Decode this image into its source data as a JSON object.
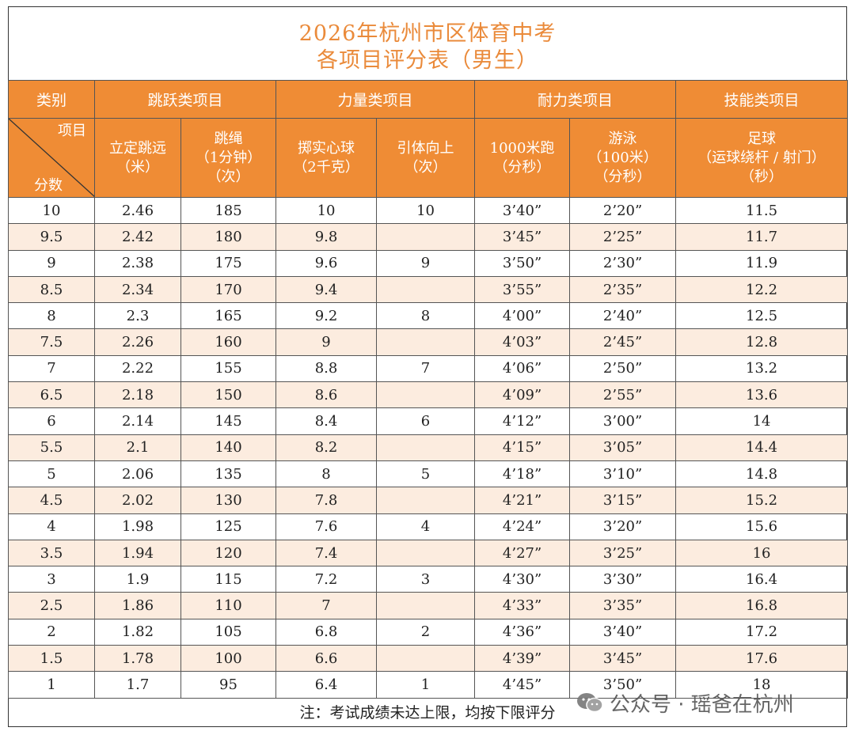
{
  "title_line1": "2026年杭州市区体育中考",
  "title_line2": "各项目评分表（男生）",
  "category_header": "类别",
  "diag_top": "项目",
  "diag_bottom": "分数",
  "groups": [
    {
      "label": "跳跃类项目"
    },
    {
      "label": "力量类项目"
    },
    {
      "label": "耐力类项目"
    },
    {
      "label": "技能类项目"
    }
  ],
  "items": [
    {
      "line1": "立定跳远",
      "line2": "（米）",
      "line3": ""
    },
    {
      "line1": "跳绳",
      "line2": "（1分钟）",
      "line3": "（次）"
    },
    {
      "line1": "掷实心球",
      "line2": "（2千克）",
      "line3": ""
    },
    {
      "line1": "引体向上",
      "line2": "（次）",
      "line3": ""
    },
    {
      "line1": "1000米跑",
      "line2": "（分秒）",
      "line3": ""
    },
    {
      "line1": "游泳",
      "line2": "（100米）",
      "line3": "（分秒）"
    },
    {
      "line1": "足球",
      "line2": "（运球绕杆 / 射门）",
      "line3": "（秒）"
    }
  ],
  "rows": [
    [
      "10",
      "2.46",
      "185",
      "10",
      "10",
      "3’40”",
      "2’20”",
      "11.5"
    ],
    [
      "9.5",
      "2.42",
      "180",
      "9.8",
      "",
      "3’45”",
      "2’25”",
      "11.7"
    ],
    [
      "9",
      "2.38",
      "175",
      "9.6",
      "9",
      "3’50”",
      "2’30”",
      "11.9"
    ],
    [
      "8.5",
      "2.34",
      "170",
      "9.4",
      "",
      "3’55”",
      "2’35”",
      "12.2"
    ],
    [
      "8",
      "2.3",
      "165",
      "9.2",
      "8",
      "4’00”",
      "2’40”",
      "12.5"
    ],
    [
      "7.5",
      "2.26",
      "160",
      "9",
      "",
      "4’03”",
      "2’45”",
      "12.8"
    ],
    [
      "7",
      "2.22",
      "155",
      "8.8",
      "7",
      "4’06”",
      "2’50”",
      "13.2"
    ],
    [
      "6.5",
      "2.18",
      "150",
      "8.6",
      "",
      "4’09”",
      "2’55”",
      "13.6"
    ],
    [
      "6",
      "2.14",
      "145",
      "8.4",
      "6",
      "4’12”",
      "3’00”",
      "14"
    ],
    [
      "5.5",
      "2.1",
      "140",
      "8.2",
      "",
      "4’15”",
      "3’05”",
      "14.4"
    ],
    [
      "5",
      "2.06",
      "135",
      "8",
      "5",
      "4’18”",
      "3’10”",
      "14.8"
    ],
    [
      "4.5",
      "2.02",
      "130",
      "7.8",
      "",
      "4’21”",
      "3’15”",
      "15.2"
    ],
    [
      "4",
      "1.98",
      "125",
      "7.6",
      "4",
      "4’24”",
      "3’20”",
      "15.6"
    ],
    [
      "3.5",
      "1.94",
      "120",
      "7.4",
      "",
      "4’27”",
      "3’25”",
      "16"
    ],
    [
      "3",
      "1.9",
      "115",
      "7.2",
      "3",
      "4’30”",
      "3’30”",
      "16.4"
    ],
    [
      "2.5",
      "1.86",
      "110",
      "7",
      "",
      "4’33”",
      "3’35”",
      "16.8"
    ],
    [
      "2",
      "1.82",
      "105",
      "6.8",
      "2",
      "4’36”",
      "3’40”",
      "17.2"
    ],
    [
      "1.5",
      "1.78",
      "100",
      "6.6",
      "",
      "4’39”",
      "3’45”",
      "17.6"
    ],
    [
      "1",
      "1.7",
      "95",
      "6.4",
      "1",
      "4’45”",
      "3’50”",
      "18"
    ]
  ],
  "note": "注：考试成绩未达上限，均按下限评分",
  "watermark": "公众号 · 瑶爸在杭州",
  "colors": {
    "header_bg": "#ef8c35",
    "title": "#ea8a3a",
    "alt_row": "#fcecdf"
  }
}
